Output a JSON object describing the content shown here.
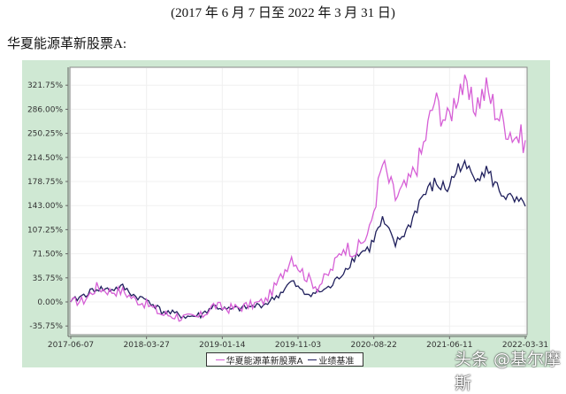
{
  "header": {
    "subtitle": "(2017 年 6 月 7 日至 2022 年 3 月 31 日)",
    "fund_heading": "华夏能源革新股票A:"
  },
  "legend": {
    "items": [
      {
        "label": "华夏能源革新股票A",
        "color": "#d65fd6"
      },
      {
        "label": "业绩基准",
        "color": "#1f1f5c"
      }
    ]
  },
  "watermark": "头条 @基尔摩斯",
  "colors": {
    "panel_bg": "#cfe8d3",
    "plot_bg": "#ffffff",
    "fund_line": "#d65fd6",
    "benchmark_line": "#1f1f5c"
  },
  "chart_data": {
    "type": "line",
    "title": "华夏能源革新股票A",
    "subtitle": "(2017 年 6 月 7 日至 2022 年 3 月 31 日)",
    "xlabel": "",
    "ylabel": "",
    "ylim": [
      -35.75,
      321.75
    ],
    "yticks": [
      "321.75%",
      "286.00%",
      "250.25%",
      "214.50%",
      "178.75%",
      "143.00%",
      "107.25%",
      "71.50%",
      "35.75%",
      "0.00%",
      "-35.75%"
    ],
    "ytick_values": [
      321.75,
      286.0,
      250.25,
      214.5,
      178.75,
      143.0,
      107.25,
      71.5,
      35.75,
      0.0,
      -35.75
    ],
    "xticks": [
      "2017-06-07",
      "2018-03-27",
      "2019-01-14",
      "2019-11-03",
      "2020-08-22",
      "2021-06-11",
      "2022-03-31"
    ],
    "grid": true,
    "legend_position": "bottom",
    "x": [
      "2017-06-07",
      "2017-08",
      "2017-10",
      "2017-12",
      "2018-01",
      "2018-03-27",
      "2018-05",
      "2018-07",
      "2018-09",
      "2018-11",
      "2019-01-14",
      "2019-03",
      "2019-05",
      "2019-07",
      "2019-09",
      "2019-11-03",
      "2020-01",
      "2020-02",
      "2020-03",
      "2020-05",
      "2020-07",
      "2020-08-22",
      "2020-10",
      "2020-12",
      "2021-01",
      "2021-03",
      "2021-05",
      "2021-06-11",
      "2021-08",
      "2021-09",
      "2021-10",
      "2021-11",
      "2021-12",
      "2022-01",
      "2022-02",
      "2022-03-31"
    ],
    "series": [
      {
        "name": "华夏能源革新股票A",
        "values": [
          0,
          2,
          22,
          16,
          16,
          3,
          -5,
          -18,
          -20,
          -25,
          -22,
          -5,
          -10,
          -8,
          -4,
          2,
          30,
          68,
          40,
          22,
          45,
          82,
          76,
          105,
          205,
          155,
          175,
          220,
          300,
          268,
          325,
          290,
          315,
          275,
          250,
          240
        ]
      },
      {
        "name": "业绩基准",
        "values": [
          0,
          10,
          20,
          18,
          22,
          8,
          2,
          -14,
          -18,
          -22,
          -20,
          -6,
          -12,
          -10,
          -7,
          -3,
          10,
          30,
          12,
          14,
          22,
          45,
          70,
          80,
          120,
          85,
          110,
          155,
          175,
          168,
          205,
          188,
          195,
          165,
          150,
          142
        ]
      }
    ]
  }
}
